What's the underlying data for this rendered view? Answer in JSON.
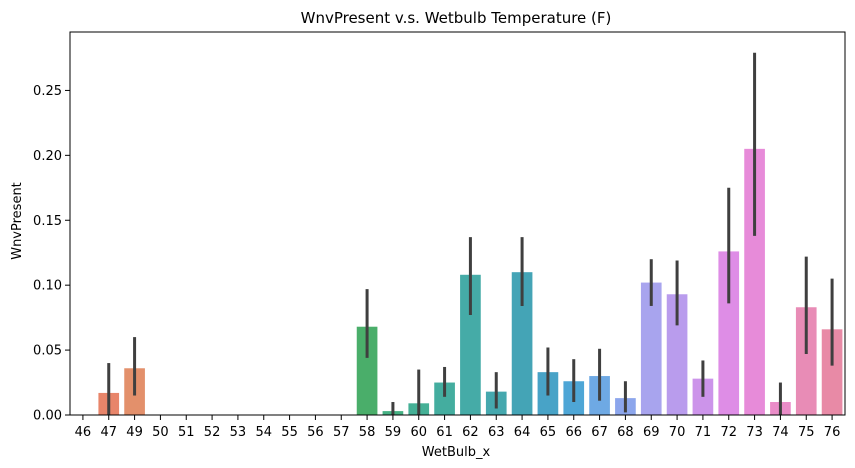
{
  "chart_data": {
    "type": "bar",
    "title": "WnvPresent v.s. Wetbulb Temperature (F)",
    "xlabel": "WetBulb_x",
    "ylabel": "WnvPresent",
    "ylim": [
      0,
      0.295
    ],
    "yticks": [
      "0.00",
      "0.05",
      "0.10",
      "0.15",
      "0.20",
      "0.25"
    ],
    "ytick_values": [
      0,
      0.05,
      0.1,
      0.15,
      0.2,
      0.25
    ],
    "grid": false,
    "legend": "none",
    "categories": [
      "46",
      "47",
      "49",
      "50",
      "51",
      "52",
      "53",
      "54",
      "55",
      "56",
      "57",
      "58",
      "59",
      "60",
      "61",
      "62",
      "63",
      "64",
      "65",
      "66",
      "67",
      "68",
      "69",
      "70",
      "71",
      "72",
      "73",
      "74",
      "75",
      "76"
    ],
    "values": [
      0,
      0.017,
      0.036,
      0,
      0,
      0,
      0,
      0,
      0,
      0,
      0,
      0.068,
      0.003,
      0.009,
      0.025,
      0.108,
      0.018,
      0.11,
      0.033,
      0.026,
      0.03,
      0.013,
      0.102,
      0.093,
      0.028,
      0.126,
      0.205,
      0.01,
      0.083,
      0.066
    ],
    "error_low": [
      0,
      0,
      0.015,
      0,
      0,
      0,
      0,
      0,
      0,
      0,
      0,
      0.044,
      0,
      0,
      0.014,
      0.077,
      0.005,
      0.084,
      0.015,
      0.01,
      0.011,
      0.002,
      0.084,
      0.069,
      0.014,
      0.086,
      0.138,
      0,
      0.047,
      0.038
    ],
    "error_high": [
      0,
      0.04,
      0.06,
      0,
      0,
      0,
      0,
      0,
      0,
      0,
      0,
      0.097,
      0.01,
      0.035,
      0.037,
      0.137,
      0.033,
      0.137,
      0.052,
      0.043,
      0.051,
      0.026,
      0.12,
      0.119,
      0.042,
      0.175,
      0.279,
      0.025,
      0.122,
      0.105
    ],
    "colors": [
      "#e8746b",
      "#e8856a",
      "#e3906b",
      "#d4a04e",
      "#c8a545",
      "#b8aa44",
      "#a5b043",
      "#8cb446",
      "#6cb84a",
      "#3fb85c",
      "#46b86a",
      "#4aae6a",
      "#46b183",
      "#45b096",
      "#44ad9f",
      "#45aba7",
      "#45a8ae",
      "#44a4b6",
      "#48a3c7",
      "#4ea6d6",
      "#6ea9e4",
      "#8ca6ec",
      "#a8a4ee",
      "#b99ced",
      "#cc94ea",
      "#de8de6",
      "#e78bd9",
      "#ea8cc8",
      "#e88cb6",
      "#e88aa6"
    ]
  }
}
